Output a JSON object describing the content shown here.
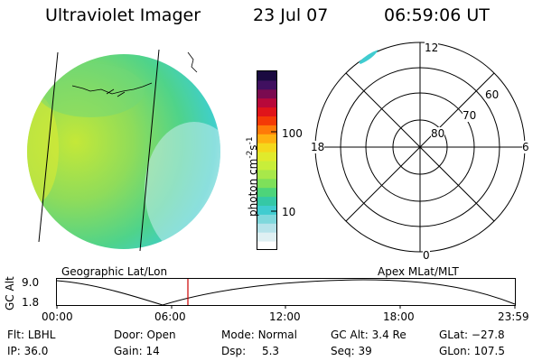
{
  "header": {
    "instrument": "Ultraviolet Imager",
    "date": "23 Jul 07",
    "time": "06:59:06 UT"
  },
  "colorbar": {
    "label": "photon cm",
    "label_exp1": "-2",
    "label_mid": "s",
    "label_exp2": "-1",
    "ticks": [
      "100",
      "10"
    ],
    "colors": [
      "#ffffff",
      "#dff0f3",
      "#b6e3ea",
      "#7fd8dc",
      "#40ccd0",
      "#35c8a6",
      "#4dd47a",
      "#7ee05a",
      "#a8e84a",
      "#c8ee3a",
      "#e0ea2c",
      "#f4d81c",
      "#ffb010",
      "#ff7a08",
      "#f43a06",
      "#e0141a",
      "#b8083a",
      "#7a0a50",
      "#401060",
      "#1a0a40"
    ]
  },
  "polar": {
    "labels": {
      "top": "12",
      "bottom": "0",
      "left": "18",
      "right": "6"
    },
    "rings": [
      "60",
      "70",
      "80"
    ]
  },
  "timeline": {
    "left_title": "Geographic Lat/Lon",
    "right_title": "Apex MLat/MLT",
    "ylabel": "GC Alt",
    "yticks": [
      "9.0",
      "1.8"
    ],
    "xticks": [
      "00:00",
      "06:00",
      "12:00",
      "18:00",
      "23:59"
    ],
    "marker_color": "#cc0000"
  },
  "info": {
    "flt_label": "Flt:",
    "flt_value": "LBHL",
    "ip_label": "IP:",
    "ip_value": "36.0",
    "door_label": "Door:",
    "door_value": "Open",
    "gain_label": "Gain:",
    "gain_value": "14",
    "mode_label": "Mode:",
    "mode_value": "Normal",
    "dsp_label": "Dsp:",
    "dsp_value": "5.3",
    "gcalt_label": "GC Alt:",
    "gcalt_value": "3.4 Re",
    "seq_label": "Seq:",
    "seq_value": "39",
    "glat_label": "GLat:",
    "glat_value": "−27.8",
    "glon_label": "GLon:",
    "glon_value": "107.5"
  }
}
